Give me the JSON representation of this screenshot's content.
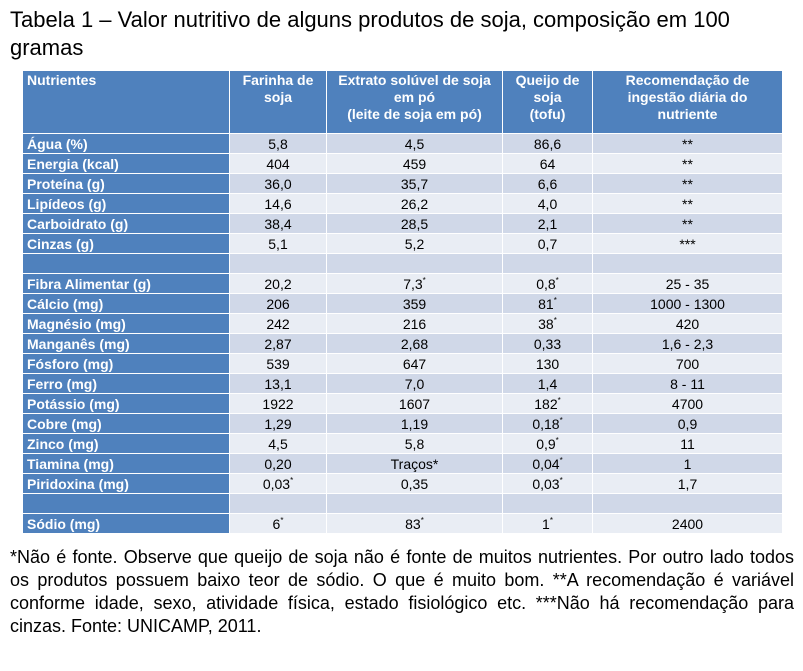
{
  "title": "Tabela 1 – Valor nutritivo de alguns produtos de soja, composição em 100 gramas",
  "headers": {
    "c0": "Nutrientes",
    "c1": "Farinha de soja",
    "c2a": "Extrato solúvel de soja em pó",
    "c2b": "(leite de soja em pó)",
    "c3a": "Queijo de soja",
    "c3b": "(tofu)",
    "c4": "Recomendação de ingestão diária do nutriente"
  },
  "rows": [
    {
      "n": "Água (%)",
      "f": "5,8",
      "e": "4,5",
      "q": "86,6",
      "r": "**"
    },
    {
      "n": "Energia (kcal)",
      "f": "404",
      "e": "459",
      "q": "64",
      "r": "**"
    },
    {
      "n": "Proteína (g)",
      "f": "36,0",
      "e": "35,7",
      "q": "6,6",
      "r": "**"
    },
    {
      "n": "Lipídeos (g)",
      "f": "14,6",
      "e": "26,2",
      "q": "4,0",
      "r": "**"
    },
    {
      "n": "Carboidrato (g)",
      "f": "38,4",
      "e": "28,5",
      "q": "2,1",
      "r": "**"
    },
    {
      "n": "Cinzas (g)",
      "f": "5,1",
      "e": "5,2",
      "q": "0,7",
      "r": "***"
    },
    {
      "n": "Fibra Alimentar (g)",
      "f": "20,2",
      "e": "7,3",
      "q": "0,8",
      "r": "25 - 35"
    },
    {
      "n": "Cálcio (mg)",
      "f": "206",
      "e": "359",
      "q": "81",
      "r": "1000 - 1300"
    },
    {
      "n": "Magnésio (mg)",
      "f": "242",
      "e": "216",
      "q": "38",
      "r": "420"
    },
    {
      "n": "Manganês (mg)",
      "f": "2,87",
      "e": "2,68",
      "q": "0,33",
      "r": "1,6 - 2,3"
    },
    {
      "n": "Fósforo (mg)",
      "f": "539",
      "e": "647",
      "q": "130",
      "r": "700"
    },
    {
      "n": "Ferro (mg)",
      "f": "13,1",
      "e": "7,0",
      "q": "1,4",
      "r": "8 - 11"
    },
    {
      "n": "Potássio (mg)",
      "f": "1922",
      "e": "1607",
      "q": "182",
      "r": "4700"
    },
    {
      "n": "Cobre (mg)",
      "f": "1,29",
      "e": "1,19",
      "q": "0,18",
      "r": "0,9"
    },
    {
      "n": "Zinco (mg)",
      "f": "4,5",
      "e": "5,8",
      "q": "0,9",
      "r": "11"
    },
    {
      "n": "Tiamina (mg)",
      "f": "0,20",
      "e": "Traços*",
      "q": "0,04",
      "r": "1"
    },
    {
      "n": "Piridoxina (mg)",
      "f": "0,03",
      "e": "0,35",
      "q": "0,03",
      "r": "1,7"
    },
    {
      "n": "Sódio (mg)",
      "f": "6",
      "e": "83",
      "q": "1",
      "r": "2400"
    }
  ],
  "footnote_mark": "*",
  "note": "*Não é fonte. Observe que queijo de soja não é fonte de muitos nutrientes. Por outro lado todos os produtos possuem baixo teor de sódio. O que é muito bom. **A recomendação é variável conforme idade, sexo, atividade física, estado fisiológico etc. ***Não há recomendação para cinzas.  Fonte: UNICAMP, 2011.",
  "colors": {
    "header_blue": "#4f81bd",
    "row_dark": "#d0d8e8",
    "row_light": "#e9edf4"
  }
}
